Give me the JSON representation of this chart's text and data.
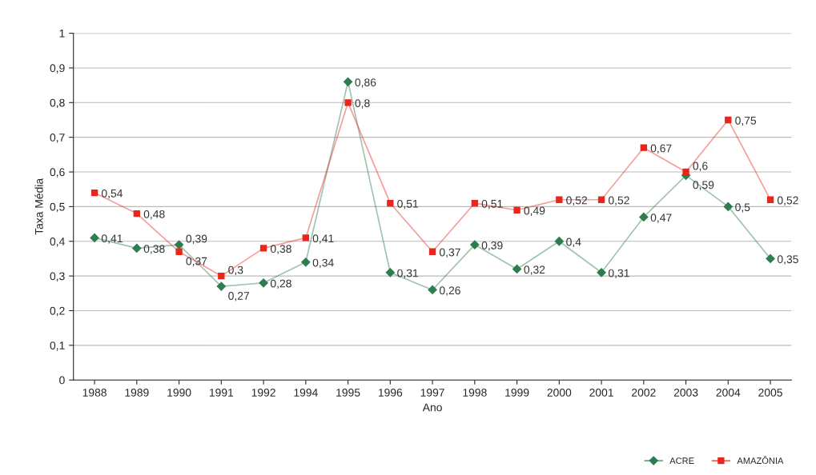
{
  "chart_data": {
    "type": "line",
    "xlabel": "Ano",
    "ylabel": "Taxa Média",
    "categories": [
      "1988",
      "1989",
      "1990",
      "1991",
      "1992",
      "1994",
      "1995",
      "1996",
      "1997",
      "1998",
      "1999",
      "2000",
      "2001",
      "2002",
      "2003",
      "2004",
      "2005"
    ],
    "series": [
      {
        "name": "ACRE",
        "color": "#2e7d4f",
        "marker": "diamond",
        "values": [
          0.41,
          0.38,
          0.39,
          0.27,
          0.28,
          0.34,
          0.86,
          0.31,
          0.26,
          0.39,
          0.32,
          0.4,
          0.31,
          0.47,
          0.59,
          0.5,
          0.35
        ],
        "value_labels": [
          "0,41",
          "0,38",
          "0,39",
          "0,27",
          "0,28",
          "0,34",
          "0,86",
          "0,31",
          "0,26",
          "0,39",
          "0,32",
          "0,4",
          "0,31",
          "0,47",
          "0,59",
          "0,5",
          "0,35"
        ]
      },
      {
        "name": "AMAZÔNIA",
        "color": "#e8261c",
        "marker": "square",
        "values": [
          0.54,
          0.48,
          0.37,
          0.3,
          0.38,
          0.41,
          0.8,
          0.51,
          0.37,
          0.51,
          0.49,
          0.52,
          0.52,
          0.67,
          0.6,
          0.75,
          0.52
        ],
        "value_labels": [
          "0,54",
          "0,48",
          "0,37",
          "0,3",
          "0,38",
          "0,41",
          "0,8",
          "0,51",
          "0,37",
          "0,51",
          "0,49",
          "0,52",
          "0,52",
          "0,67",
          "0,6",
          "0,75",
          "0,52"
        ]
      }
    ],
    "ylim": [
      0,
      1
    ],
    "yticks": [
      0,
      {
        "value": 0.1,
        "label": "0,1"
      },
      {
        "value": 0.2,
        "label": "0,2"
      },
      {
        "value": 0.3,
        "label": "0,3"
      },
      {
        "value": 0.4,
        "label": "0,4"
      },
      {
        "value": 0.5,
        "label": "0,5"
      },
      {
        "value": 0.6,
        "label": "0,6"
      },
      {
        "value": 0.7,
        "label": "0,7"
      },
      {
        "value": 0.8,
        "label": "0,8"
      },
      {
        "value": 0.9,
        "label": "0,9"
      },
      1
    ],
    "grid": "y",
    "legend": "bottom right",
    "line_style": "solid"
  }
}
